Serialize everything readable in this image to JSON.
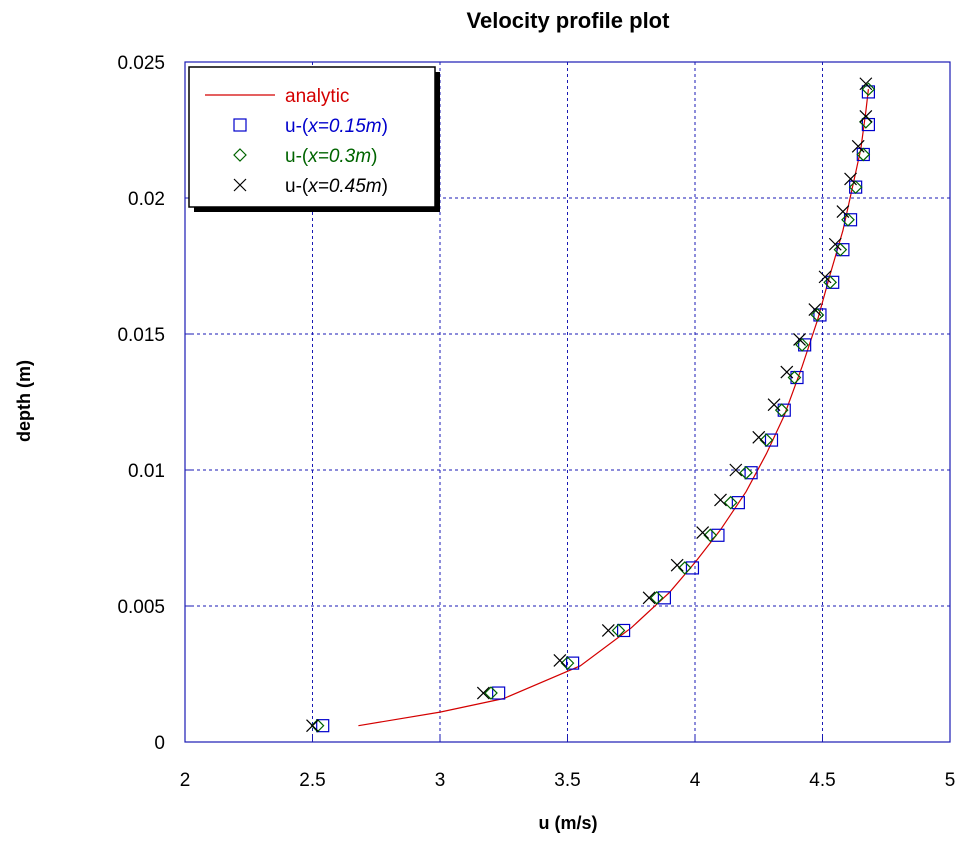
{
  "chart_data": {
    "type": "scatter",
    "title": "Velocity profile plot",
    "xlabel": "u (m/s)",
    "ylabel": "depth (m)",
    "xlim": [
      2,
      5
    ],
    "ylim": [
      0,
      0.025
    ],
    "x_ticks": [
      "2",
      "2.5",
      "3",
      "3.5",
      "4",
      "4.5",
      "5"
    ],
    "y_ticks": [
      "0",
      "0.005",
      "0.01",
      "0.015",
      "0.02",
      "0.025"
    ],
    "grid": true,
    "legend_position": "top-left",
    "series": [
      {
        "name": "analytic",
        "kind": "line",
        "color": "#d40000",
        "points": [
          [
            2.68,
            0.0006
          ],
          [
            3.0,
            0.0011
          ],
          [
            3.25,
            0.0016
          ],
          [
            3.55,
            0.0028
          ],
          [
            3.75,
            0.0042
          ],
          [
            3.9,
            0.0055
          ],
          [
            4.0,
            0.0066
          ],
          [
            4.1,
            0.0078
          ],
          [
            4.2,
            0.0092
          ],
          [
            4.28,
            0.0106
          ],
          [
            4.35,
            0.012
          ],
          [
            4.42,
            0.0138
          ],
          [
            4.48,
            0.0155
          ],
          [
            4.53,
            0.0172
          ],
          [
            4.58,
            0.0188
          ],
          [
            4.62,
            0.0205
          ],
          [
            4.65,
            0.0218
          ],
          [
            4.67,
            0.0232
          ],
          [
            4.68,
            0.024
          ]
        ]
      },
      {
        "name_prefix": "u-(",
        "name_italic": "x=0.15m",
        "name_suffix": ")",
        "kind": "square",
        "color": "#0000cc",
        "points": [
          [
            2.54,
            0.0006
          ],
          [
            3.23,
            0.0018
          ],
          [
            3.52,
            0.0029
          ],
          [
            3.72,
            0.0041
          ],
          [
            3.88,
            0.0053
          ],
          [
            3.99,
            0.0064
          ],
          [
            4.09,
            0.0076
          ],
          [
            4.17,
            0.0088
          ],
          [
            4.22,
            0.0099
          ],
          [
            4.3,
            0.0111
          ],
          [
            4.35,
            0.0122
          ],
          [
            4.4,
            0.0134
          ],
          [
            4.43,
            0.0146
          ],
          [
            4.49,
            0.0157
          ],
          [
            4.54,
            0.0169
          ],
          [
            4.58,
            0.0181
          ],
          [
            4.61,
            0.0192
          ],
          [
            4.63,
            0.0204
          ],
          [
            4.66,
            0.0216
          ],
          [
            4.68,
            0.0227
          ],
          [
            4.68,
            0.0239
          ]
        ]
      },
      {
        "name_prefix": "u-(",
        "name_italic": "x=0.3m",
        "name_suffix": ")",
        "kind": "diamond",
        "color": "#006400",
        "points": [
          [
            2.52,
            0.0006
          ],
          [
            3.2,
            0.0018
          ],
          [
            3.5,
            0.0029
          ],
          [
            3.7,
            0.0041
          ],
          [
            3.85,
            0.0053
          ],
          [
            3.96,
            0.0064
          ],
          [
            4.06,
            0.0076
          ],
          [
            4.14,
            0.0088
          ],
          [
            4.2,
            0.0099
          ],
          [
            4.28,
            0.0111
          ],
          [
            4.34,
            0.0122
          ],
          [
            4.39,
            0.0134
          ],
          [
            4.42,
            0.0146
          ],
          [
            4.48,
            0.0157
          ],
          [
            4.53,
            0.0169
          ],
          [
            4.57,
            0.0181
          ],
          [
            4.6,
            0.0192
          ],
          [
            4.63,
            0.0204
          ],
          [
            4.66,
            0.0216
          ],
          [
            4.67,
            0.0228
          ],
          [
            4.68,
            0.024
          ]
        ]
      },
      {
        "name_prefix": "u-(",
        "name_italic": "x=0.45m",
        "name_suffix": ")",
        "kind": "cross",
        "color": "#000000",
        "points": [
          [
            2.5,
            0.0006
          ],
          [
            3.17,
            0.0018
          ],
          [
            3.47,
            0.003
          ],
          [
            3.66,
            0.0041
          ],
          [
            3.82,
            0.0053
          ],
          [
            3.93,
            0.0065
          ],
          [
            4.03,
            0.0077
          ],
          [
            4.1,
            0.0089
          ],
          [
            4.16,
            0.01
          ],
          [
            4.25,
            0.0112
          ],
          [
            4.31,
            0.0124
          ],
          [
            4.36,
            0.0136
          ],
          [
            4.41,
            0.0148
          ],
          [
            4.47,
            0.0159
          ],
          [
            4.51,
            0.0171
          ],
          [
            4.55,
            0.0183
          ],
          [
            4.58,
            0.0195
          ],
          [
            4.61,
            0.0207
          ],
          [
            4.64,
            0.0219
          ],
          [
            4.67,
            0.023
          ],
          [
            4.67,
            0.0242
          ]
        ]
      }
    ]
  }
}
